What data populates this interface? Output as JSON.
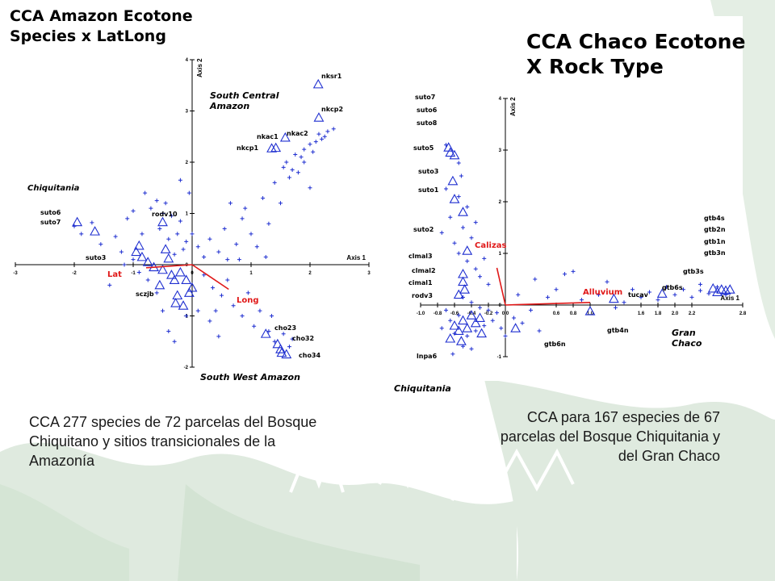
{
  "colors": {
    "bg_green": "#dfeadf",
    "point_blue": "#1f2fd0",
    "vector_red": "#e01818",
    "axis": "#000000"
  },
  "left_title": [
    "CCA Amazon Ecotone",
    "Species x LatLong"
  ],
  "right_title": [
    "CCA Chaco Ecotone",
    "X Rock Type"
  ],
  "left_caption": "CCA 277 species de 72 parcelas del Bosque Chiquitano y sitios transicionales de la Amazonía",
  "right_caption": "CCA para 167 especies de 67 parcelas del Bosque Chiquitania y del Gran Chaco",
  "chart_data": [
    {
      "type": "scatter",
      "title": "CCA Amazon Ecotone Species x LatLong",
      "xlabel": "Axis 1",
      "ylabel": "Axis 2",
      "xlim": [
        -3,
        3
      ],
      "ylim": [
        -2,
        4
      ],
      "xticks": [
        "-3",
        "-2",
        "-1",
        "0",
        "1",
        "2",
        "3"
      ],
      "yticks": [
        "-2",
        "-1",
        "0",
        "1",
        "2",
        "3",
        "4"
      ],
      "grid": false,
      "group_labels": [
        "Chiquitania",
        "South Central Amazon",
        "South West Amazon"
      ],
      "vectors": [
        {
          "name": "Lat",
          "x": -0.78,
          "y": -0.06
        },
        {
          "name": "Long",
          "x": 0.62,
          "y": -0.48
        }
      ],
      "sites": [
        {
          "name": "nksr1",
          "x": 2.14,
          "y": 3.52
        },
        {
          "name": "nkcp2",
          "x": 2.15,
          "y": 2.87
        },
        {
          "name": "nkac2",
          "x": 1.58,
          "y": 2.48
        },
        {
          "name": "nkac1",
          "x": 1.42,
          "y": 2.28
        },
        {
          "name": "nkcp1",
          "x": 1.35,
          "y": 2.27
        },
        {
          "name": "suto6",
          "x": -1.95,
          "y": 0.83
        },
        {
          "name": "suto7",
          "x": -1.65,
          "y": 0.65
        },
        {
          "name": "rodv10",
          "x": -0.5,
          "y": 0.83
        },
        {
          "name": "suto3",
          "x": -0.9,
          "y": 0.37
        },
        {
          "name": "",
          "x": -0.95,
          "y": 0.25
        },
        {
          "name": "",
          "x": -0.85,
          "y": 0.15
        },
        {
          "name": "",
          "x": -0.75,
          "y": 0.05
        },
        {
          "name": "",
          "x": -0.65,
          "y": -0.05
        },
        {
          "name": "",
          "x": -0.5,
          "y": -0.1
        },
        {
          "name": "",
          "x": -0.45,
          "y": 0.3
        },
        {
          "name": "",
          "x": -0.4,
          "y": 0.12
        },
        {
          "name": "",
          "x": -0.35,
          "y": -0.2
        },
        {
          "name": "",
          "x": -0.3,
          "y": -0.3
        },
        {
          "name": "",
          "x": -0.2,
          "y": -0.15
        },
        {
          "name": "",
          "x": -0.1,
          "y": -0.3
        },
        {
          "name": "",
          "x": -0.05,
          "y": -0.55
        },
        {
          "name": "",
          "x": -0.55,
          "y": -0.4
        },
        {
          "name": "",
          "x": -0.25,
          "y": -0.6
        },
        {
          "name": "",
          "x": 0.0,
          "y": -0.45
        },
        {
          "name": "sczjb",
          "x": -0.28,
          "y": -0.75
        },
        {
          "name": "",
          "x": -0.15,
          "y": -0.8
        },
        {
          "name": "cho23",
          "x": 1.25,
          "y": -1.35
        },
        {
          "name": "cho32",
          "x": 1.45,
          "y": -1.55
        },
        {
          "name": "cho34",
          "x": 1.52,
          "y": -1.72
        },
        {
          "name": "",
          "x": 1.6,
          "y": -1.75
        },
        {
          "name": "",
          "x": 1.5,
          "y": -1.65
        }
      ],
      "species": [
        [
          -2.0,
          0.75
        ],
        [
          -1.88,
          0.6
        ],
        [
          -1.7,
          0.82
        ],
        [
          -1.55,
          0.4
        ],
        [
          -1.3,
          0.55
        ],
        [
          -1.2,
          0.25
        ],
        [
          -1.1,
          0.9
        ],
        [
          -1.0,
          1.05
        ],
        [
          -0.85,
          0.6
        ],
        [
          -0.8,
          1.4
        ],
        [
          -0.7,
          1.1
        ],
        [
          -0.6,
          1.25
        ],
        [
          -0.55,
          0.7
        ],
        [
          -0.5,
          1.0
        ],
        [
          -0.45,
          1.2
        ],
        [
          -0.4,
          0.5
        ],
        [
          -0.35,
          0.95
        ],
        [
          -0.3,
          0.2
        ],
        [
          -0.25,
          0.6
        ],
        [
          -0.2,
          0.85
        ],
        [
          -0.15,
          0.3
        ],
        [
          -0.1,
          0.45
        ],
        [
          0.0,
          0.6
        ],
        [
          0.1,
          0.35
        ],
        [
          0.2,
          0.15
        ],
        [
          0.3,
          0.5
        ],
        [
          0.45,
          0.25
        ],
        [
          0.55,
          0.7
        ],
        [
          0.6,
          0.1
        ],
        [
          0.75,
          0.4
        ],
        [
          0.85,
          0.9
        ],
        [
          0.9,
          1.1
        ],
        [
          1.0,
          0.6
        ],
        [
          1.1,
          0.35
        ],
        [
          1.2,
          1.3
        ],
        [
          1.3,
          0.8
        ],
        [
          1.4,
          1.6
        ],
        [
          1.5,
          1.2
        ],
        [
          1.6,
          2.0
        ],
        [
          1.7,
          1.85
        ],
        [
          1.75,
          2.15
        ],
        [
          1.85,
          2.1
        ],
        [
          1.9,
          2.25
        ],
        [
          2.0,
          2.35
        ],
        [
          2.1,
          2.4
        ],
        [
          2.15,
          2.55
        ],
        [
          2.25,
          2.5
        ],
        [
          2.3,
          2.6
        ],
        [
          2.4,
          2.65
        ],
        [
          1.9,
          2.0
        ],
        [
          2.05,
          2.2
        ],
        [
          1.65,
          1.7
        ],
        [
          1.55,
          1.9
        ],
        [
          1.8,
          1.8
        ],
        [
          2.2,
          2.45
        ],
        [
          0.2,
          -0.2
        ],
        [
          0.35,
          -0.45
        ],
        [
          0.5,
          -0.6
        ],
        [
          0.6,
          -0.3
        ],
        [
          0.7,
          -0.8
        ],
        [
          0.85,
          -1.0
        ],
        [
          0.95,
          -0.55
        ],
        [
          1.05,
          -1.2
        ],
        [
          1.15,
          -0.9
        ],
        [
          1.3,
          -1.3
        ],
        [
          1.35,
          -1.0
        ],
        [
          1.4,
          -1.5
        ],
        [
          1.55,
          -1.35
        ],
        [
          1.65,
          -1.6
        ],
        [
          1.7,
          -1.45
        ],
        [
          0.1,
          -0.9
        ],
        [
          0.3,
          -1.1
        ],
        [
          -0.1,
          -1.0
        ],
        [
          -0.4,
          -1.3
        ],
        [
          -0.5,
          -0.9
        ],
        [
          -0.6,
          -0.55
        ],
        [
          -0.75,
          -0.3
        ],
        [
          -0.9,
          -0.15
        ],
        [
          -1.0,
          0.1
        ],
        [
          -1.15,
          0.0
        ],
        [
          -0.3,
          -1.5
        ],
        [
          0.4,
          -0.9
        ],
        [
          0.8,
          0.1
        ],
        [
          1.25,
          0.15
        ],
        [
          2.0,
          1.5
        ],
        [
          -1.4,
          -0.4
        ],
        [
          -0.05,
          1.4
        ],
        [
          0.65,
          1.2
        ],
        [
          0.45,
          -1.4
        ],
        [
          -0.2,
          1.65
        ]
      ]
    },
    {
      "type": "scatter",
      "title": "CCA Chaco Ecotone X Rock Type",
      "xlabel": "Axis 1",
      "ylabel": "Axis 2",
      "xlim": [
        -1.0,
        2.8
      ],
      "ylim": [
        -1,
        4
      ],
      "xticks": [
        "-1.0",
        "-0.8",
        "-0.6",
        "-0.4",
        "-0.2",
        "0.0",
        "0.6",
        "0.8",
        "1.0",
        "1.6",
        "1.8",
        "2.0",
        "2.2",
        "2.8"
      ],
      "yticks": [
        "-1",
        "0",
        "1",
        "2",
        "3",
        "4"
      ],
      "grid": false,
      "group_labels": [
        "Chiquitania",
        "Gran Chaco"
      ],
      "vectors": [
        {
          "name": "Calizas",
          "x": -0.1,
          "y": 0.72
        },
        {
          "name": "Alluvium",
          "x": 1.0,
          "y": 0.05
        }
      ],
      "sites": [
        {
          "name": "suto7",
          "x": -0.67,
          "y": 3.05
        },
        {
          "name": "suto6",
          "x": -0.65,
          "y": 2.95
        },
        {
          "name": "suto8",
          "x": -0.6,
          "y": 2.9
        },
        {
          "name": "suto5",
          "x": -0.62,
          "y": 2.4
        },
        {
          "name": "suto3",
          "x": -0.6,
          "y": 2.05
        },
        {
          "name": "suto1",
          "x": -0.5,
          "y": 1.8
        },
        {
          "name": "suto2",
          "x": -0.45,
          "y": 1.05
        },
        {
          "name": "clmal3",
          "x": -0.5,
          "y": 0.6
        },
        {
          "name": "clmal2",
          "x": -0.5,
          "y": 0.45
        },
        {
          "name": "cimal1",
          "x": -0.48,
          "y": 0.3
        },
        {
          "name": "rodv3",
          "x": -0.55,
          "y": 0.2
        },
        {
          "name": "lnpa6",
          "x": -0.65,
          "y": -0.65
        },
        {
          "name": "",
          "x": -0.6,
          "y": -0.4
        },
        {
          "name": "",
          "x": -0.55,
          "y": -0.5
        },
        {
          "name": "",
          "x": -0.5,
          "y": -0.3
        },
        {
          "name": "",
          "x": -0.45,
          "y": -0.45
        },
        {
          "name": "",
          "x": -0.4,
          "y": -0.2
        },
        {
          "name": "",
          "x": -0.35,
          "y": -0.35
        },
        {
          "name": "",
          "x": -0.3,
          "y": -0.25
        },
        {
          "name": "",
          "x": -0.28,
          "y": -0.55
        },
        {
          "name": "",
          "x": -0.52,
          "y": -0.7
        },
        {
          "name": "gtb6n",
          "x": 0.12,
          "y": -0.45
        },
        {
          "name": "gtb4n",
          "x": 1.0,
          "y": -0.12
        },
        {
          "name": "tucav",
          "x": 1.28,
          "y": 0.12
        },
        {
          "name": "gtb6s",
          "x": 1.85,
          "y": 0.22
        },
        {
          "name": "gtb3s",
          "x": 2.45,
          "y": 0.32
        },
        {
          "name": "gtb4s",
          "x": 2.55,
          "y": 0.3
        },
        {
          "name": "gtb2n",
          "x": 2.6,
          "y": 0.28
        },
        {
          "name": "gtb1n",
          "x": 2.5,
          "y": 0.25
        },
        {
          "name": "gtb3n",
          "x": 2.65,
          "y": 0.3
        }
      ],
      "species": [
        [
          -0.7,
          3.1
        ],
        [
          -0.55,
          2.75
        ],
        [
          -0.52,
          2.5
        ],
        [
          -0.7,
          2.25
        ],
        [
          -0.55,
          2.1
        ],
        [
          -0.45,
          1.9
        ],
        [
          -0.65,
          1.7
        ],
        [
          -0.5,
          1.5
        ],
        [
          -0.4,
          1.3
        ],
        [
          -0.6,
          1.2
        ],
        [
          -0.55,
          1.0
        ],
        [
          -0.45,
          0.85
        ],
        [
          -0.35,
          0.7
        ],
        [
          -0.3,
          0.55
        ],
        [
          -0.2,
          0.4
        ],
        [
          -0.5,
          0.15
        ],
        [
          -0.4,
          0.05
        ],
        [
          -0.3,
          -0.05
        ],
        [
          -0.2,
          -0.1
        ],
        [
          -0.1,
          -0.15
        ],
        [
          -0.7,
          -0.1
        ],
        [
          -0.65,
          -0.3
        ],
        [
          -0.6,
          -0.55
        ],
        [
          -0.55,
          -0.2
        ],
        [
          -0.5,
          -0.8
        ],
        [
          -0.45,
          -0.6
        ],
        [
          -0.35,
          -0.5
        ],
        [
          -0.25,
          -0.4
        ],
        [
          -0.15,
          -0.3
        ],
        [
          -0.05,
          -0.45
        ],
        [
          0.0,
          -0.6
        ],
        [
          0.1,
          -0.25
        ],
        [
          0.2,
          -0.35
        ],
        [
          0.3,
          -0.1
        ],
        [
          0.4,
          -0.5
        ],
        [
          0.5,
          0.15
        ],
        [
          0.6,
          0.3
        ],
        [
          0.7,
          0.6
        ],
        [
          0.8,
          0.65
        ],
        [
          0.9,
          0.1
        ],
        [
          1.1,
          0.2
        ],
        [
          1.3,
          -0.05
        ],
        [
          1.4,
          0.05
        ],
        [
          1.5,
          0.3
        ],
        [
          1.6,
          0.15
        ],
        [
          1.7,
          0.25
        ],
        [
          1.8,
          0.1
        ],
        [
          1.9,
          0.35
        ],
        [
          2.0,
          0.2
        ],
        [
          2.1,
          0.3
        ],
        [
          2.2,
          0.15
        ],
        [
          2.3,
          0.28
        ],
        [
          2.4,
          0.22
        ],
        [
          2.5,
          0.35
        ],
        [
          2.6,
          0.2
        ],
        [
          -0.75,
          -0.45
        ],
        [
          -0.62,
          -0.95
        ],
        [
          -0.4,
          -0.85
        ],
        [
          0.15,
          0.2
        ],
        [
          0.35,
          0.5
        ],
        [
          -0.25,
          0.9
        ],
        [
          -0.35,
          1.6
        ],
        [
          -0.75,
          1.4
        ],
        [
          1.2,
          0.45
        ],
        [
          2.3,
          0.4
        ]
      ]
    }
  ]
}
